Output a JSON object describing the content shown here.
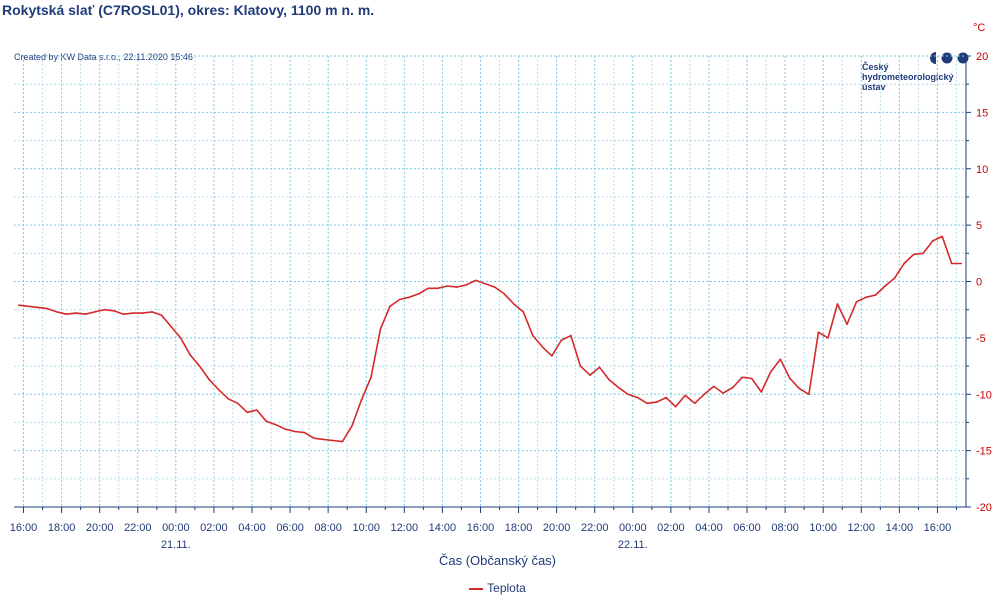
{
  "header": {
    "title": "Rokytská slať (C7ROSL01), okres: Klatovy, 1100 m n. m.",
    "credit": "Created by KW Data s.r.o., 22.11.2020 15:46"
  },
  "logo": {
    "lines": [
      "Český",
      "hydrometeorologický",
      "ústav"
    ],
    "color": "#1f3b7a"
  },
  "colors": {
    "series": "#d42a2a",
    "grid": "#7fc8e0",
    "axis_text": "#1f3b7a",
    "y_text": "#cc0000"
  },
  "chart_data": {
    "type": "line",
    "xlabel": "Čas (Občanský čas)",
    "ylabel": "°C",
    "y_axis_side": "right",
    "grid": true,
    "legend_placement": "bottom-center",
    "ylim": [
      -20,
      20
    ],
    "yticks": [
      20,
      15,
      10,
      5,
      0,
      -5,
      -10,
      -15,
      -20
    ],
    "xlim_hours": [
      15.5,
      65.5
    ],
    "xticks": [
      {
        "hour": 16,
        "label": "16:00"
      },
      {
        "hour": 18,
        "label": "18:00"
      },
      {
        "hour": 20,
        "label": "20:00"
      },
      {
        "hour": 22,
        "label": "22:00"
      },
      {
        "hour": 24,
        "label": "00:00"
      },
      {
        "hour": 26,
        "label": "02:00"
      },
      {
        "hour": 28,
        "label": "04:00"
      },
      {
        "hour": 30,
        "label": "06:00"
      },
      {
        "hour": 32,
        "label": "08:00"
      },
      {
        "hour": 34,
        "label": "10:00"
      },
      {
        "hour": 36,
        "label": "12:00"
      },
      {
        "hour": 38,
        "label": "14:00"
      },
      {
        "hour": 40,
        "label": "16:00"
      },
      {
        "hour": 42,
        "label": "18:00"
      },
      {
        "hour": 44,
        "label": "20:00"
      },
      {
        "hour": 46,
        "label": "22:00"
      },
      {
        "hour": 48,
        "label": "00:00"
      },
      {
        "hour": 50,
        "label": "02:00"
      },
      {
        "hour": 52,
        "label": "04:00"
      },
      {
        "hour": 54,
        "label": "06:00"
      },
      {
        "hour": 56,
        "label": "08:00"
      },
      {
        "hour": 58,
        "label": "10:00"
      },
      {
        "hour": 60,
        "label": "12:00"
      },
      {
        "hour": 62,
        "label": "14:00"
      },
      {
        "hour": 64,
        "label": "16:00"
      }
    ],
    "date_labels": [
      {
        "hour": 24,
        "label": "21.11."
      },
      {
        "hour": 48,
        "label": "22.11."
      }
    ],
    "series": [
      {
        "name": "Teplota",
        "points": [
          [
            15.75,
            -2.1
          ],
          [
            16.25,
            -2.2
          ],
          [
            16.75,
            -2.3
          ],
          [
            17.25,
            -2.4
          ],
          [
            17.75,
            -2.7
          ],
          [
            18.25,
            -2.9
          ],
          [
            18.75,
            -2.8
          ],
          [
            19.25,
            -2.9
          ],
          [
            19.75,
            -2.7
          ],
          [
            20.25,
            -2.5
          ],
          [
            20.75,
            -2.6
          ],
          [
            21.25,
            -2.9
          ],
          [
            21.75,
            -2.8
          ],
          [
            22.25,
            -2.8
          ],
          [
            22.75,
            -2.7
          ],
          [
            23.25,
            -3.0
          ],
          [
            23.75,
            -4.0
          ],
          [
            24.25,
            -5.0
          ],
          [
            24.75,
            -6.5
          ],
          [
            25.25,
            -7.5
          ],
          [
            25.75,
            -8.7
          ],
          [
            26.25,
            -9.6
          ],
          [
            26.75,
            -10.4
          ],
          [
            27.25,
            -10.8
          ],
          [
            27.75,
            -11.6
          ],
          [
            28.25,
            -11.4
          ],
          [
            28.75,
            -12.4
          ],
          [
            29.25,
            -12.7
          ],
          [
            29.75,
            -13.1
          ],
          [
            30.25,
            -13.3
          ],
          [
            30.75,
            -13.4
          ],
          [
            31.25,
            -13.9
          ],
          [
            31.75,
            -14.0
          ],
          [
            32.25,
            -14.1
          ],
          [
            32.75,
            -14.2
          ],
          [
            33.25,
            -12.8
          ],
          [
            33.75,
            -10.5
          ],
          [
            34.25,
            -8.5
          ],
          [
            34.75,
            -4.2
          ],
          [
            35.25,
            -2.2
          ],
          [
            35.75,
            -1.6
          ],
          [
            36.25,
            -1.4
          ],
          [
            36.75,
            -1.1
          ],
          [
            37.25,
            -0.6
          ],
          [
            37.75,
            -0.6
          ],
          [
            38.25,
            -0.4
          ],
          [
            38.75,
            -0.5
          ],
          [
            39.25,
            -0.3
          ],
          [
            39.75,
            0.1
          ],
          [
            40.25,
            -0.2
          ],
          [
            40.75,
            -0.5
          ],
          [
            41.25,
            -1.1
          ],
          [
            41.75,
            -2.0
          ],
          [
            42.25,
            -2.7
          ],
          [
            42.75,
            -4.8
          ],
          [
            43.25,
            -5.8
          ],
          [
            43.75,
            -6.6
          ],
          [
            44.25,
            -5.2
          ],
          [
            44.75,
            -4.8
          ],
          [
            45.25,
            -7.5
          ],
          [
            45.75,
            -8.3
          ],
          [
            46.25,
            -7.6
          ],
          [
            46.75,
            -8.7
          ],
          [
            47.25,
            -9.4
          ],
          [
            47.75,
            -10.0
          ],
          [
            48.25,
            -10.3
          ],
          [
            48.75,
            -10.8
          ],
          [
            49.25,
            -10.7
          ],
          [
            49.75,
            -10.3
          ],
          [
            50.25,
            -11.1
          ],
          [
            50.75,
            -10.1
          ],
          [
            51.25,
            -10.8
          ],
          [
            51.75,
            -10.0
          ],
          [
            52.25,
            -9.3
          ],
          [
            52.75,
            -9.9
          ],
          [
            53.25,
            -9.4
          ],
          [
            53.75,
            -8.5
          ],
          [
            54.25,
            -8.6
          ],
          [
            54.75,
            -9.8
          ],
          [
            55.25,
            -8.0
          ],
          [
            55.75,
            -6.9
          ],
          [
            56.25,
            -8.6
          ],
          [
            56.75,
            -9.5
          ],
          [
            57.25,
            -10.0
          ],
          [
            57.75,
            -4.5
          ],
          [
            58.25,
            -5.0
          ],
          [
            58.75,
            -2.0
          ],
          [
            59.25,
            -3.8
          ],
          [
            59.75,
            -1.8
          ],
          [
            60.25,
            -1.4
          ],
          [
            60.75,
            -1.2
          ],
          [
            61.25,
            -0.4
          ],
          [
            61.75,
            0.3
          ],
          [
            62.25,
            1.6
          ],
          [
            62.75,
            2.4
          ],
          [
            63.25,
            2.5
          ],
          [
            63.75,
            3.6
          ],
          [
            64.25,
            4.0
          ],
          [
            64.75,
            1.6
          ],
          [
            65.25,
            1.6
          ]
        ]
      }
    ]
  }
}
